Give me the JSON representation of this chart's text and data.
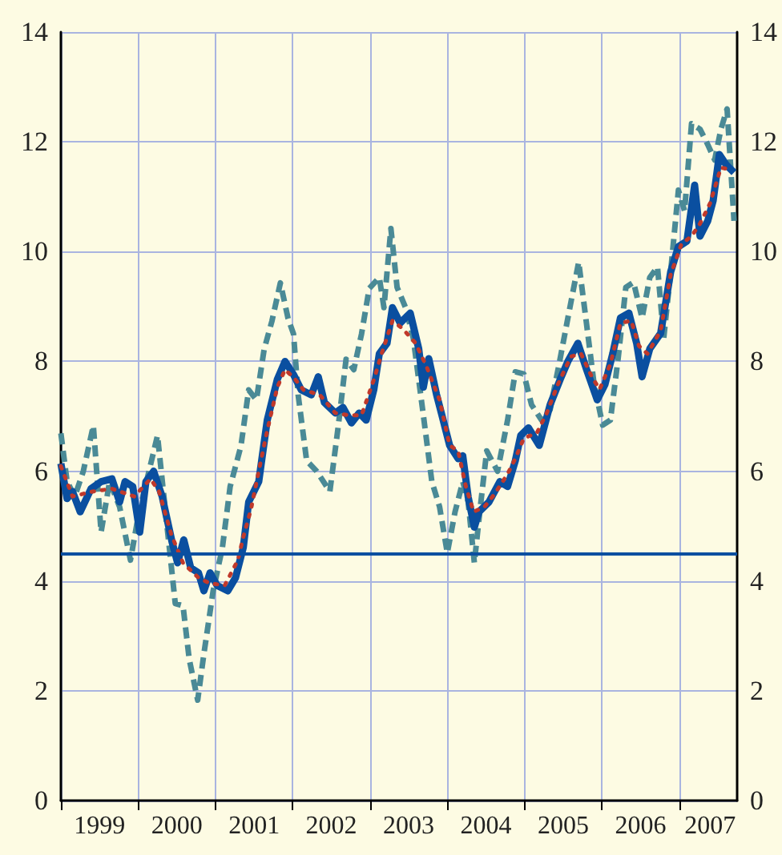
{
  "chart_data": {
    "type": "line",
    "xlim": [
      1999,
      2007.75
    ],
    "xticks": [
      {
        "value": 1999,
        "label": null
      },
      {
        "value": 1999.5,
        "label": "1999"
      },
      {
        "value": 2000,
        "label": null
      },
      {
        "value": 2000.5,
        "label": "2000"
      },
      {
        "value": 2001,
        "label": null
      },
      {
        "value": 2001.5,
        "label": "2001"
      },
      {
        "value": 2002,
        "label": null
      },
      {
        "value": 2002.5,
        "label": "2002"
      },
      {
        "value": 2003,
        "label": null
      },
      {
        "value": 2003.5,
        "label": "2003"
      },
      {
        "value": 2004,
        "label": null
      },
      {
        "value": 2004.5,
        "label": "2004"
      },
      {
        "value": 2005,
        "label": null
      },
      {
        "value": 2005.5,
        "label": "2005"
      },
      {
        "value": 2006,
        "label": null
      },
      {
        "value": 2006.5,
        "label": "2006"
      },
      {
        "value": 2007,
        "label": null
      },
      {
        "value": 2007.4,
        "label": "2007"
      }
    ],
    "ylim": [
      0,
      14
    ],
    "yticks": [
      0,
      2,
      4,
      6,
      8,
      10,
      12,
      14
    ],
    "y2lim": [
      0,
      14
    ],
    "y2ticks": [
      0,
      2,
      4,
      6,
      8,
      10,
      12,
      14
    ],
    "grid": true,
    "marker": "none",
    "ref_lines": [
      {
        "axis": "y",
        "value": 4.5,
        "color": "#0a4fa0"
      }
    ],
    "series": [
      {
        "color": "#0a4fa0",
        "line_style": "solid",
        "x": [
          1999.0,
          1999.08,
          1999.15,
          1999.25,
          1999.39,
          1999.52,
          1999.66,
          1999.76,
          1999.83,
          1999.93,
          2000.02,
          2000.1,
          2000.2,
          2000.31,
          2000.44,
          2000.51,
          2000.59,
          2000.68,
          2000.78,
          2000.85,
          2000.93,
          2001.02,
          2001.16,
          2001.26,
          2001.36,
          2001.43,
          2001.56,
          2001.67,
          2001.8,
          2001.9,
          2002.01,
          2002.11,
          2002.24,
          2002.33,
          2002.41,
          2002.55,
          2002.65,
          2002.76,
          2002.86,
          2002.95,
          2003.05,
          2003.12,
          2003.22,
          2003.29,
          2003.39,
          2003.52,
          2003.63,
          2003.69,
          2003.76,
          2003.86,
          2003.93,
          2004.03,
          2004.14,
          2004.2,
          2004.27,
          2004.35,
          2004.41,
          2004.54,
          2004.68,
          2004.78,
          2004.88,
          2004.95,
          2005.05,
          2005.19,
          2005.33,
          2005.46,
          2005.56,
          2005.69,
          2005.8,
          2005.94,
          2006.04,
          2006.14,
          2006.24,
          2006.35,
          2006.45,
          2006.52,
          2006.62,
          2006.76,
          2006.89,
          2006.99,
          2007.1,
          2007.2,
          2007.27,
          2007.37,
          2007.44,
          2007.52,
          2007.61,
          2007.71
        ],
        "values": [
          6.14,
          5.5,
          5.63,
          5.26,
          5.68,
          5.81,
          5.86,
          5.44,
          5.81,
          5.72,
          4.89,
          5.81,
          6.0,
          5.54,
          4.7,
          4.33,
          4.75,
          4.24,
          4.15,
          3.82,
          4.15,
          3.92,
          3.82,
          4.06,
          4.61,
          5.44,
          5.81,
          6.93,
          7.67,
          8.0,
          7.76,
          7.48,
          7.39,
          7.72,
          7.25,
          7.06,
          7.16,
          6.88,
          7.06,
          6.93,
          7.49,
          8.14,
          8.33,
          8.98,
          8.7,
          8.88,
          8.23,
          7.53,
          8.05,
          7.4,
          7.02,
          6.47,
          6.23,
          6.28,
          5.53,
          4.98,
          5.26,
          5.44,
          5.81,
          5.72,
          6.19,
          6.65,
          6.79,
          6.47,
          7.21,
          7.67,
          8.0,
          8.33,
          7.86,
          7.3,
          7.58,
          8.14,
          8.79,
          8.88,
          8.33,
          7.72,
          8.23,
          8.51,
          9.63,
          10.09,
          10.19,
          11.21,
          10.28,
          10.56,
          10.93,
          11.77,
          11.58,
          11.44
        ]
      },
      {
        "color": "#c0392b",
        "line_style": "dotted",
        "x": [
          1999.0,
          1999.15,
          1999.41,
          1999.66,
          1999.95,
          2000.16,
          2000.27,
          2000.43,
          2000.58,
          2000.78,
          2000.92,
          2001.12,
          2001.29,
          2001.36,
          2001.46,
          2001.56,
          2001.67,
          2001.8,
          2001.9,
          2002.01,
          2002.14,
          2002.35,
          2002.55,
          2002.72,
          2002.89,
          2003.05,
          2003.15,
          2003.29,
          2003.42,
          2003.59,
          2003.73,
          2003.9,
          2004.03,
          2004.14,
          2004.24,
          2004.34,
          2004.48,
          2004.61,
          2004.78,
          2004.88,
          2004.99,
          2005.16,
          2005.29,
          2005.43,
          2005.6,
          2005.73,
          2005.87,
          2005.97,
          2006.11,
          2006.24,
          2006.38,
          2006.48,
          2006.59,
          2006.76,
          2006.89,
          2007.03,
          2007.16,
          2007.27,
          2007.4,
          2007.54,
          2007.67
        ],
        "values": [
          6.09,
          5.54,
          5.63,
          5.68,
          5.54,
          5.86,
          5.63,
          4.84,
          4.33,
          4.06,
          3.96,
          3.92,
          4.38,
          4.8,
          5.31,
          6.0,
          6.74,
          7.53,
          7.85,
          7.71,
          7.48,
          7.39,
          7.06,
          7.02,
          7.02,
          7.67,
          8.14,
          8.74,
          8.6,
          8.33,
          7.91,
          7.3,
          6.47,
          6.37,
          5.72,
          5.26,
          5.35,
          5.58,
          5.95,
          6.23,
          6.6,
          6.7,
          7.07,
          7.58,
          8.09,
          8.14,
          7.72,
          7.49,
          7.95,
          8.7,
          8.74,
          8.28,
          8.14,
          8.56,
          9.58,
          10.14,
          10.28,
          10.51,
          10.88,
          11.53,
          11.49
        ]
      },
      {
        "color": "#4a8a96",
        "line_style": "dashed",
        "x": [
          1999.0,
          1999.08,
          1999.18,
          1999.29,
          1999.42,
          1999.52,
          1999.63,
          1999.76,
          1999.9,
          2000.0,
          2000.14,
          2000.25,
          2000.34,
          2000.48,
          2000.58,
          2000.66,
          2000.77,
          2000.85,
          2000.97,
          2001.09,
          2001.19,
          2001.33,
          2001.43,
          2001.53,
          2001.63,
          2001.73,
          2001.84,
          2001.94,
          2002.01,
          2002.07,
          2002.18,
          2002.31,
          2002.48,
          2002.59,
          2002.69,
          2002.79,
          2002.89,
          2002.99,
          2003.12,
          2003.18,
          2003.27,
          2003.35,
          2003.46,
          2003.56,
          2003.69,
          2003.8,
          2003.9,
          2004.0,
          2004.1,
          2004.2,
          2004.27,
          2004.35,
          2004.42,
          2004.51,
          2004.65,
          2004.78,
          2004.88,
          2004.99,
          2005.09,
          2005.22,
          2005.33,
          2005.46,
          2005.56,
          2005.7,
          2005.8,
          2005.9,
          2006.01,
          2006.11,
          2006.21,
          2006.31,
          2006.41,
          2006.52,
          2006.62,
          2006.72,
          2006.8,
          2006.89,
          2006.99,
          2007.07,
          2007.16,
          2007.27,
          2007.37,
          2007.46,
          2007.54,
          2007.62,
          2007.71
        ],
        "values": [
          6.69,
          5.81,
          5.54,
          6.0,
          6.83,
          4.89,
          5.81,
          5.35,
          4.38,
          5.17,
          6.0,
          6.65,
          5.44,
          3.59,
          3.55,
          2.58,
          1.83,
          2.67,
          3.82,
          4.61,
          5.72,
          6.46,
          7.48,
          7.3,
          8.22,
          8.73,
          9.43,
          8.78,
          8.5,
          7.39,
          6.19,
          6.0,
          5.63,
          6.83,
          8.04,
          7.85,
          8.5,
          9.33,
          9.53,
          8.98,
          10.42,
          9.35,
          8.98,
          8.42,
          7.02,
          5.81,
          5.35,
          4.51,
          5.26,
          5.81,
          5.44,
          4.33,
          5.26,
          6.37,
          6.0,
          6.93,
          7.81,
          7.77,
          7.21,
          6.93,
          7.12,
          8.05,
          8.79,
          9.81,
          8.7,
          7.58,
          6.84,
          6.93,
          8.05,
          9.35,
          9.44,
          8.79,
          9.53,
          9.72,
          8.42,
          9.63,
          11.12,
          10.74,
          12.33,
          12.23,
          11.95,
          11.67,
          12.23,
          12.6,
          10.56
        ]
      }
    ]
  }
}
